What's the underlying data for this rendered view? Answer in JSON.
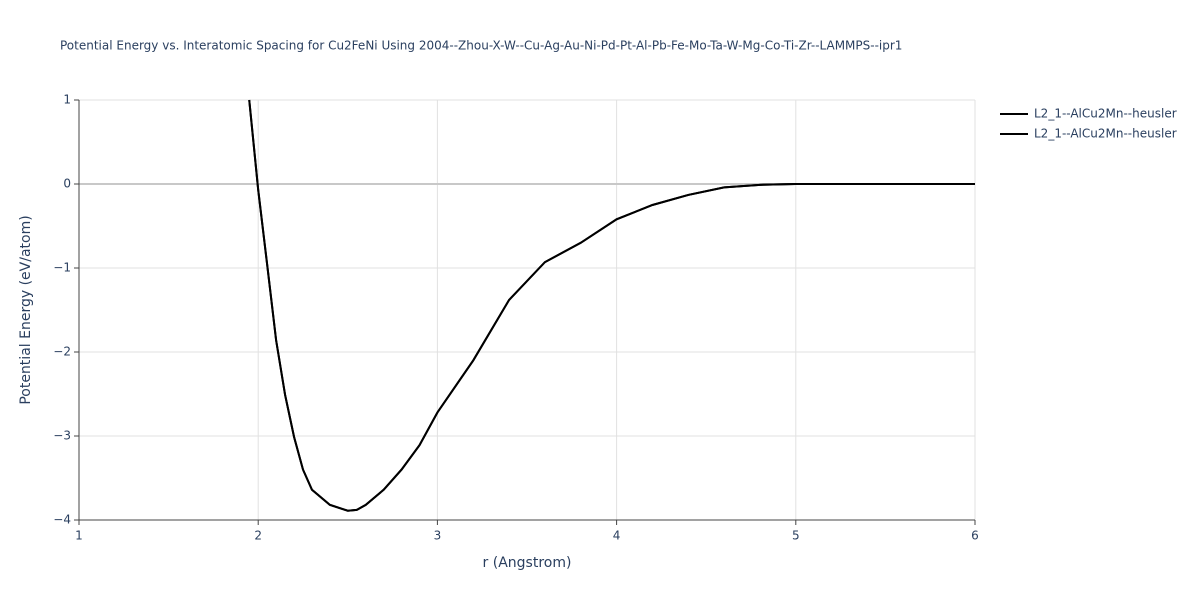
{
  "chart_data": {
    "type": "line",
    "title": "Potential Energy vs. Interatomic Spacing for Cu2FeNi Using 2004--Zhou-X-W--Cu-Ag-Au-Ni-Pd-Pt-Al-Pb-Fe-Mo-Ta-W-Mg-Co-Ti-Zr--LAMMPS--ipr1",
    "x_label": "r (Angstrom)",
    "y_label": "Potential Energy (eV/atom)",
    "x": [
      1.95,
      2.0,
      2.05,
      2.1,
      2.15,
      2.2,
      2.25,
      2.3,
      2.4,
      2.5,
      2.55,
      2.6,
      2.7,
      2.8,
      2.9,
      3.0,
      3.2,
      3.4,
      3.6,
      3.8,
      4.0,
      4.2,
      4.4,
      4.6,
      4.8,
      5.0,
      5.5,
      6.0
    ],
    "series": [
      {
        "name": "L2_1--AlCu2Mn--heusler",
        "color": "#000000",
        "values": [
          1,
          -0.07,
          -0.96,
          -1.86,
          -2.51,
          -3.01,
          -3.4,
          -3.64,
          -3.82,
          -3.89,
          -3.88,
          -3.82,
          -3.64,
          -3.4,
          -3.11,
          -2.72,
          -2.1,
          -1.38,
          -0.93,
          -0.7,
          -0.42,
          -0.25,
          -0.13,
          -0.04,
          -0.01,
          0,
          0,
          0
        ]
      },
      {
        "name": "L2_1--AlCu2Mn--heusler",
        "color": "#000000",
        "values": [
          1,
          -0.07,
          -0.96,
          -1.86,
          -2.51,
          -3.01,
          -3.4,
          -3.64,
          -3.82,
          -3.89,
          -3.88,
          -3.82,
          -3.64,
          -3.4,
          -3.11,
          -2.72,
          -2.1,
          -1.38,
          -0.93,
          -0.7,
          -0.42,
          -0.25,
          -0.13,
          -0.04,
          -0.01,
          0,
          0,
          0
        ]
      }
    ],
    "xlim": [
      1,
      6
    ],
    "ylim": [
      -4,
      1
    ],
    "xticks": [
      1,
      2,
      3,
      4,
      5,
      6
    ],
    "yticks": [
      {
        "value": -4,
        "label": "−4"
      },
      {
        "value": -3,
        "label": "−3"
      },
      {
        "value": -2,
        "label": "−2"
      },
      {
        "value": -1,
        "label": "−1"
      },
      0,
      1
    ],
    "grid": true,
    "legend": "right"
  }
}
